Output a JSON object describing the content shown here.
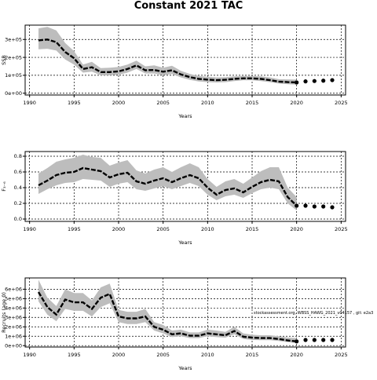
{
  "page_title": "Constant 2021 TAC",
  "watermark": "stockassessment.org, WBSS_HAWG_2021_v04157 , git: e2a3",
  "chart_data": [
    {
      "type": "line",
      "title": "",
      "xlabel": "Years",
      "ylabel": "SSB",
      "xlim": [
        1989.5,
        2025.5
      ],
      "ylim": [
        -10000,
        380000
      ],
      "x_ticks": [
        1990,
        1995,
        2000,
        2005,
        2010,
        2015,
        2020,
        2025
      ],
      "y_ticks": [
        0,
        100000,
        200000,
        300000
      ],
      "y_tick_labels": [
        "0e+00",
        "1e+05",
        "2e+05",
        "3e+05"
      ],
      "grid": true,
      "years": [
        1991,
        1992,
        1993,
        1994,
        1995,
        1996,
        1997,
        1998,
        1999,
        2000,
        2001,
        2002,
        2003,
        2004,
        2005,
        2006,
        2007,
        2008,
        2009,
        2010,
        2011,
        2012,
        2013,
        2014,
        2015,
        2016,
        2017,
        2018,
        2019,
        2020
      ],
      "series": [
        {
          "role": "estimate",
          "values": [
            295000,
            300000,
            285000,
            230000,
            195000,
            135000,
            145000,
            118000,
            118000,
            122000,
            135000,
            155000,
            128000,
            130000,
            120000,
            128000,
            105000,
            90000,
            80000,
            76000,
            73000,
            75000,
            80000,
            83000,
            83000,
            80000,
            73000,
            65000,
            62000,
            60000
          ]
        },
        {
          "role": "lower",
          "values": [
            245000,
            248000,
            238000,
            188000,
            160000,
            115000,
            120000,
            100000,
            100000,
            103000,
            115000,
            135000,
            110000,
            110000,
            100000,
            108000,
            88000,
            74000,
            66000,
            62000,
            60000,
            62000,
            68000,
            72000,
            72000,
            68000,
            62000,
            54000,
            50000,
            48000
          ]
        },
        {
          "role": "upper",
          "values": [
            362000,
            370000,
            350000,
            280000,
            235000,
            160000,
            175000,
            140000,
            142000,
            147000,
            160000,
            182000,
            150000,
            155000,
            142000,
            153000,
            125000,
            108000,
            96000,
            92000,
            88000,
            90000,
            94000,
            96000,
            96000,
            94000,
            88000,
            78000,
            77000,
            76000
          ]
        }
      ],
      "forecast": {
        "years": [
          2020,
          2021,
          2022,
          2023,
          2024
        ],
        "values": [
          60000,
          66000,
          68000,
          70000,
          73000
        ]
      }
    },
    {
      "type": "line",
      "title": "",
      "xlabel": "Years",
      "ylabel": "F₃₋₆",
      "xlim": [
        1989.5,
        2025.5
      ],
      "ylim": [
        -0.03,
        0.86
      ],
      "x_ticks": [
        1990,
        1995,
        2000,
        2005,
        2010,
        2015,
        2020,
        2025
      ],
      "y_ticks": [
        0.0,
        0.2,
        0.4,
        0.6,
        0.8
      ],
      "y_tick_labels": [
        "0.0",
        "0.2",
        "0.4",
        "0.6",
        "0.8"
      ],
      "grid": true,
      "years": [
        1991,
        1992,
        1993,
        1994,
        1995,
        1996,
        1997,
        1998,
        1999,
        2000,
        2001,
        2002,
        2003,
        2004,
        2005,
        2006,
        2007,
        2008,
        2009,
        2010,
        2011,
        2012,
        2013,
        2014,
        2015,
        2016,
        2017,
        2018,
        2019,
        2020
      ],
      "series": [
        {
          "role": "estimate",
          "values": [
            0.43,
            0.49,
            0.56,
            0.59,
            0.6,
            0.65,
            0.63,
            0.61,
            0.53,
            0.57,
            0.59,
            0.48,
            0.45,
            0.49,
            0.52,
            0.47,
            0.52,
            0.56,
            0.52,
            0.4,
            0.31,
            0.37,
            0.39,
            0.34,
            0.41,
            0.47,
            0.5,
            0.48,
            0.28,
            0.17
          ]
        },
        {
          "role": "lower",
          "values": [
            0.32,
            0.38,
            0.43,
            0.46,
            0.47,
            0.51,
            0.5,
            0.49,
            0.41,
            0.45,
            0.47,
            0.38,
            0.36,
            0.39,
            0.42,
            0.38,
            0.42,
            0.46,
            0.42,
            0.31,
            0.24,
            0.29,
            0.31,
            0.27,
            0.33,
            0.38,
            0.4,
            0.38,
            0.2,
            0.11
          ]
        },
        {
          "role": "upper",
          "values": [
            0.58,
            0.65,
            0.73,
            0.76,
            0.78,
            0.82,
            0.79,
            0.78,
            0.68,
            0.72,
            0.75,
            0.62,
            0.58,
            0.63,
            0.66,
            0.6,
            0.66,
            0.71,
            0.66,
            0.51,
            0.41,
            0.48,
            0.51,
            0.45,
            0.53,
            0.61,
            0.66,
            0.66,
            0.4,
            0.28
          ]
        }
      ],
      "forecast": {
        "years": [
          2020,
          2021,
          2022,
          2023,
          2024
        ],
        "values": [
          0.17,
          0.17,
          0.16,
          0.16,
          0.15
        ]
      }
    },
    {
      "type": "line",
      "title": "",
      "xlabel": "Years",
      "ylabel": "Recruits (age 0)",
      "xlim": [
        1989.5,
        2025.5
      ],
      "ylim": [
        -150000,
        7200000
      ],
      "x_ticks": [
        1990,
        1995,
        2000,
        2005,
        2010,
        2015,
        2020,
        2025
      ],
      "y_ticks": [
        0,
        1000000,
        2000000,
        3000000,
        4000000,
        5000000,
        6000000
      ],
      "y_tick_labels": [
        "0e+00",
        "1e+06",
        "2e+06",
        "3e+06",
        "4e+06",
        "5e+06",
        "6e+06"
      ],
      "grid": true,
      "years": [
        1991,
        1992,
        1993,
        1994,
        1995,
        1996,
        1997,
        1998,
        1999,
        2000,
        2001,
        2002,
        2003,
        2004,
        2005,
        2006,
        2007,
        2008,
        2009,
        2010,
        2011,
        2012,
        2013,
        2014,
        2015,
        2016,
        2017,
        2018,
        2019,
        2020
      ],
      "series": [
        {
          "role": "estimate",
          "values": [
            5700000,
            4100000,
            3300000,
            4900000,
            4600000,
            4600000,
            3900000,
            5100000,
            5500000,
            3100000,
            2900000,
            2900000,
            3100000,
            2000000,
            1700000,
            1200000,
            1300000,
            1050000,
            1050000,
            1300000,
            1200000,
            1100000,
            1550000,
            950000,
            850000,
            800000,
            800000,
            700000,
            550000,
            450000
          ]
        },
        {
          "role": "lower",
          "values": [
            4700000,
            3300000,
            2600000,
            3900000,
            3700000,
            3700000,
            3100000,
            4100000,
            4500000,
            2500000,
            2300000,
            2300000,
            2500000,
            1600000,
            1300000,
            900000,
            1000000,
            800000,
            800000,
            1000000,
            900000,
            850000,
            1200000,
            700000,
            600000,
            580000,
            580000,
            500000,
            380000,
            280000
          ]
        },
        {
          "role": "upper",
          "values": [
            7000000,
            5100000,
            4200000,
            6000000,
            5600000,
            5600000,
            4800000,
            6200000,
            6600000,
            3800000,
            3600000,
            3600000,
            3900000,
            2500000,
            2200000,
            1600000,
            1700000,
            1400000,
            1400000,
            1700000,
            1600000,
            1450000,
            2000000,
            1300000,
            1150000,
            1100000,
            1100000,
            1000000,
            850000,
            800000
          ]
        }
      ],
      "forecast": {
        "years": [
          2020,
          2021,
          2022,
          2023,
          2024
        ],
        "values": [
          450000,
          600000,
          600000,
          600000,
          600000
        ]
      }
    }
  ]
}
